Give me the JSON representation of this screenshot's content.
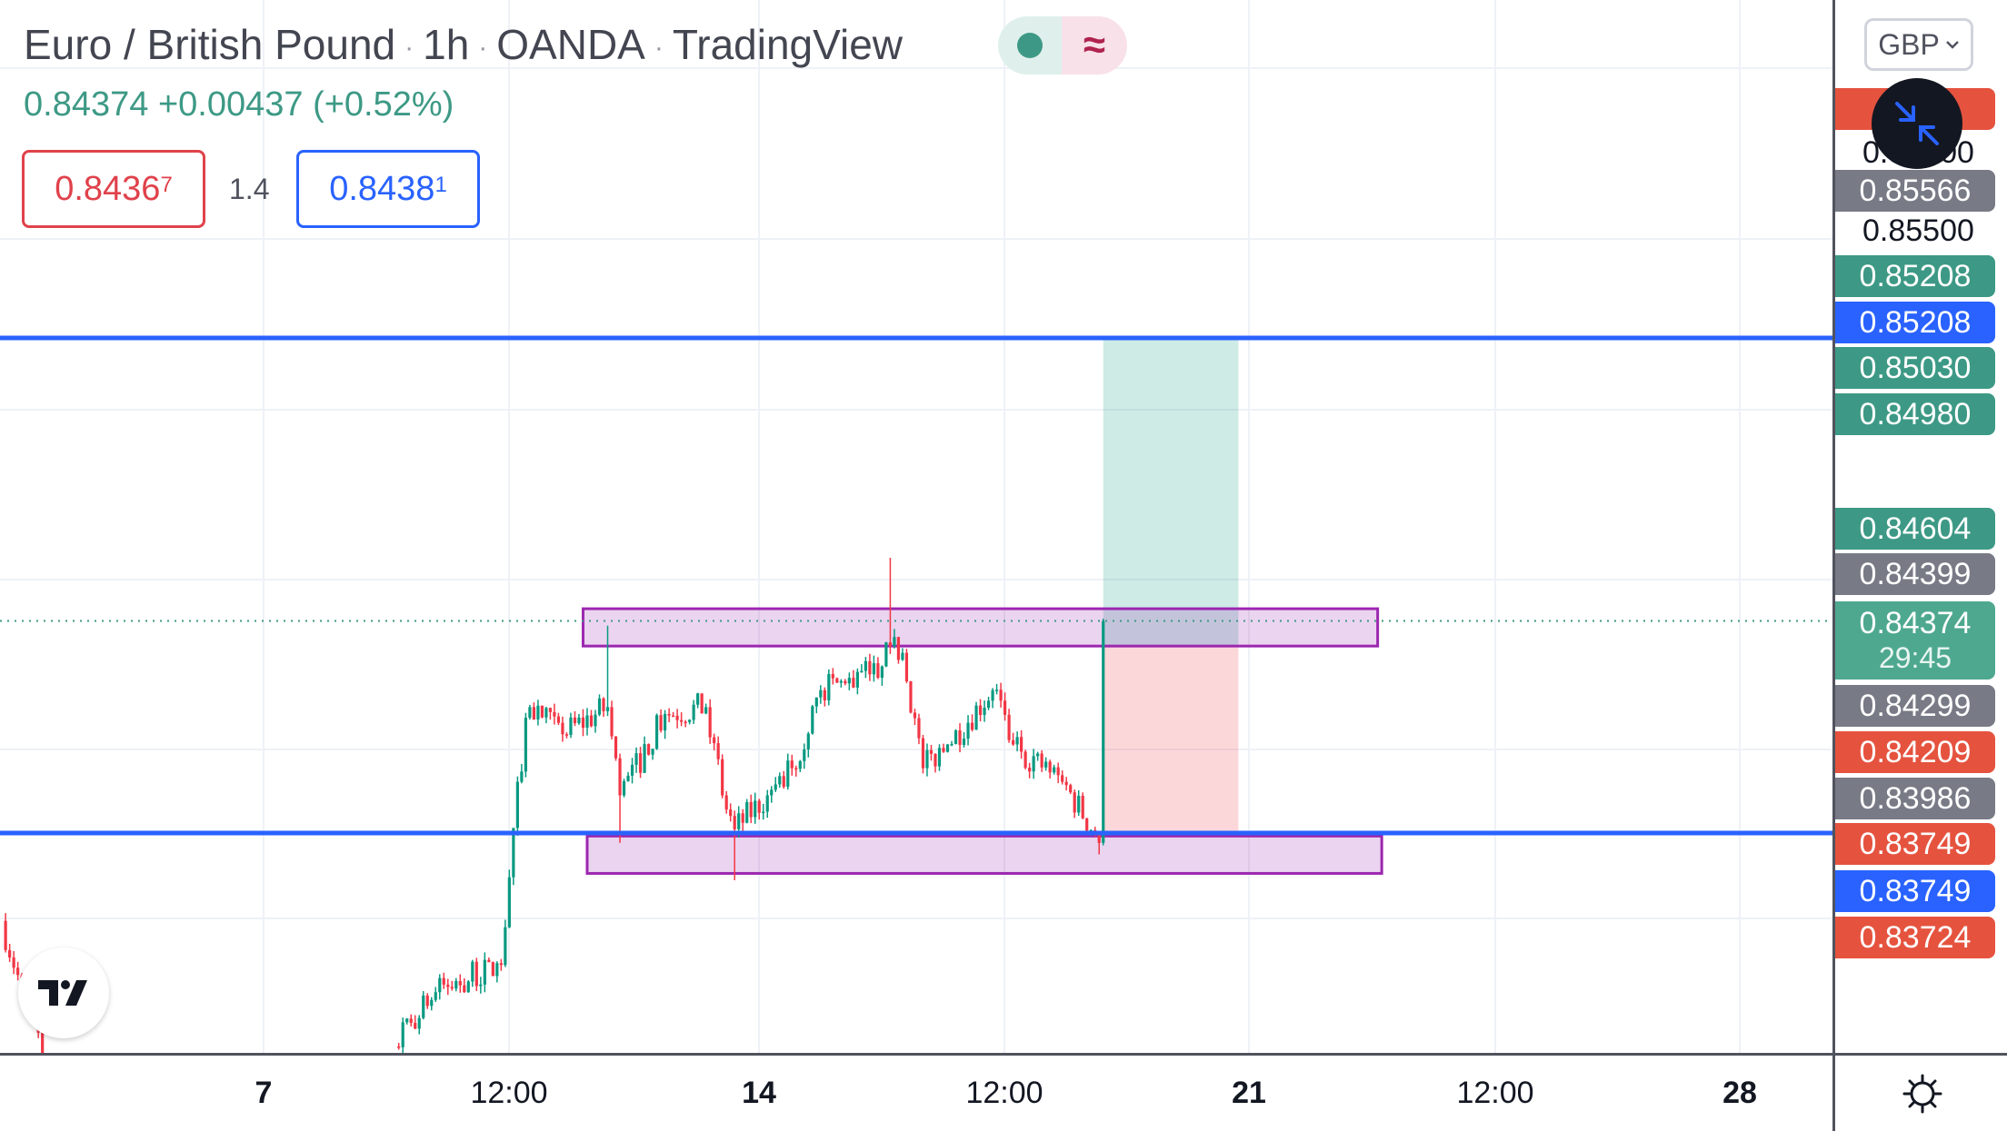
{
  "header": {
    "symbol": "Euro / British Pound",
    "interval": "1h",
    "exchange": "OANDA",
    "source": "TradingView",
    "separator": "·",
    "status_icon": "market-open-dot",
    "replay_icon": "approx-wave",
    "wave_glyph": "≈",
    "last": "0.84374",
    "change": "+0.00437",
    "change_pct": "(+0.52%)",
    "sell_price": "0.8436",
    "sell_pip": "7",
    "spread": "1.4",
    "buy_price": "0.8438",
    "buy_pip": "1"
  },
  "currency_button": {
    "label": "GBP",
    "icon": "chevron-down"
  },
  "price_axis": {
    "ticks": [
      "0.86000",
      "0.85500"
    ],
    "labels": [
      {
        "text": "",
        "color": "#e5533f"
      },
      {
        "text": "0.85566",
        "color": "#787b86"
      },
      {
        "text": "0.85208",
        "color": "#3d9985"
      },
      {
        "text": "0.85208",
        "color": "#2962ff"
      },
      {
        "text": "0.85030",
        "color": "#3d9985"
      },
      {
        "text": "0.84980",
        "color": "#3d9985"
      },
      {
        "text": "0.84604",
        "color": "#3d9985"
      },
      {
        "text": "0.84399",
        "color": "#787b86"
      },
      {
        "text": "0.84299",
        "color": "#787b86"
      },
      {
        "text": "0.84209",
        "color": "#e5533f"
      },
      {
        "text": "0.83986",
        "color": "#787b86"
      },
      {
        "text": "0.83749",
        "color": "#e5533f"
      },
      {
        "text": "0.83749",
        "color": "#2962ff"
      },
      {
        "text": "0.83724",
        "color": "#e5533f"
      }
    ],
    "current": {
      "price": "0.84374",
      "countdown": "29:45",
      "color": "#4ea88f"
    }
  },
  "time_axis": {
    "labels": [
      {
        "text": "7",
        "bold": true
      },
      {
        "text": "12:00",
        "bold": false
      },
      {
        "text": "14",
        "bold": true
      },
      {
        "text": "12:00",
        "bold": false
      },
      {
        "text": "21",
        "bold": true
      },
      {
        "text": "12:00",
        "bold": false
      },
      {
        "text": "28",
        "bold": true
      }
    ]
  },
  "colors": {
    "up": "#089981",
    "down": "#f23645",
    "line": "#2962ff",
    "box": "#9c27b0"
  },
  "chart_data": {
    "type": "candlestick",
    "interval": "1h",
    "trading_days": [
      "31",
      "1",
      "2",
      "3",
      "4",
      "7",
      "8",
      "9",
      "10",
      "11",
      "14",
      "15",
      "16",
      "17",
      "18",
      "21",
      "22",
      "23",
      "24",
      "25"
    ],
    "current_price": 0.84374,
    "horizontal_lines": [
      0.85208,
      0.83749
    ],
    "rectangles": [
      {
        "from": "10 06:00",
        "to": "22 08:00",
        "top": 0.8441,
        "bottom": 0.843
      },
      {
        "from": "10 07:00",
        "to": "22 09:00",
        "top": 0.8374,
        "bottom": 0.8363
      }
    ],
    "long_position": {
      "from": "17 13:00",
      "to": "18 22:00",
      "entry": 0.843,
      "target": 0.85208,
      "stop": 0.83749
    },
    "segments": [
      [
        {
          "t": "2 08:00",
          "p": 0.8349
        },
        {
          "t": "2 20:00",
          "p": 0.83
        }
      ],
      [
        {
          "t": "8 08:00",
          "p": 0.8312
        },
        {
          "t": "8 18:00",
          "p": 0.8328
        },
        {
          "t": "9 10:00",
          "p": 0.8336
        },
        {
          "t": "9 14:00",
          "p": 0.839
        },
        {
          "t": "9 17:00",
          "p": 0.8412
        },
        {
          "t": "10 01:00",
          "p": 0.8404
        },
        {
          "t": "10 12:00",
          "p": 0.8412,
          "high": 0.8436
        },
        {
          "t": "10 15:00",
          "p": 0.8386,
          "low": 0.8372
        },
        {
          "t": "11 02:00",
          "p": 0.841
        },
        {
          "t": "11 12:00",
          "p": 0.8412
        },
        {
          "t": "11 16:00",
          "p": 0.8386
        },
        {
          "t": "11 19:00",
          "p": 0.8376,
          "low": 0.8361
        },
        {
          "t": "14 03:00",
          "p": 0.8386
        },
        {
          "t": "14 09:00",
          "p": 0.8394
        },
        {
          "t": "14 16:00",
          "p": 0.8417
        },
        {
          "t": "14 22:00",
          "p": 0.8419
        },
        {
          "t": "15 07:00",
          "p": 0.8424
        },
        {
          "t": "15 09:00",
          "p": 0.843,
          "high": 0.8456
        },
        {
          "t": "15 12:00",
          "p": 0.8428
        },
        {
          "t": "15 17:00",
          "p": 0.8394
        },
        {
          "t": "15 23:00",
          "p": 0.8401
        },
        {
          "t": "16 10:00",
          "p": 0.8417
        },
        {
          "t": "16 15:00",
          "p": 0.8401
        },
        {
          "t": "17 03:00",
          "p": 0.839
        },
        {
          "t": "17 11:00",
          "p": 0.8375
        },
        {
          "t": "17 12:00",
          "p": 0.8372,
          "low": 0.83686
        },
        {
          "t": "17 13:00",
          "p": 0.84374
        }
      ]
    ]
  }
}
